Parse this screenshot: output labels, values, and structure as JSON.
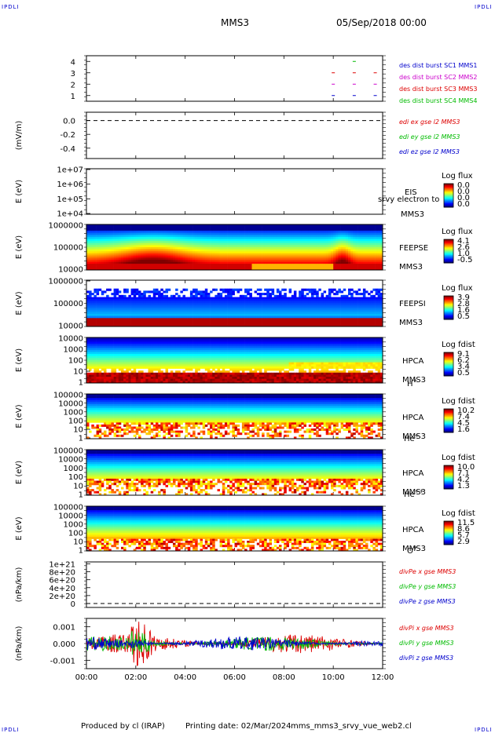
{
  "header": {
    "spacecraft": "MMS3",
    "date": "05/Sep/2018 00:00",
    "corner_mark": "IPDLI"
  },
  "footer": {
    "produced_by": "Produced by cl (IRAP)",
    "printing_date": "Printing date: 02/Mar/2024",
    "filename": "mms_mms3_srvy_vue_web2.cl"
  },
  "time_axis": {
    "ticks": [
      "00:00",
      "02:00",
      "04:00",
      "06:00",
      "08:00",
      "10:00",
      "12:00"
    ],
    "range_hours": [
      0,
      12
    ]
  },
  "colors": {
    "series_red": "#dd0000",
    "series_green": "#00bb00",
    "series_blue": "#0000cc",
    "series_magenta": "#cc00cc",
    "dashed": "#000000"
  },
  "chart_data": [
    {
      "type": "line",
      "panel": "burst",
      "ylim": [
        0.5,
        4.5
      ],
      "yticks": [
        "4",
        "3",
        "2",
        "1"
      ],
      "legend": [
        {
          "label": "des dist burst SC1 MMS1",
          "color": "#0000cc"
        },
        {
          "label": "des dist burst SC2 MMS2",
          "color": "#cc00cc"
        },
        {
          "label": "des dist burst SC3 MMS3",
          "color": "#dd0000"
        },
        {
          "label": "des dist burst SC4 MMS4",
          "color": "#00bb00"
        }
      ],
      "marks": [
        {
          "sc": 4,
          "t": 10.85,
          "color": "#00bb00"
        },
        {
          "sc": 3,
          "t": 10.0,
          "color": "#dd0000"
        },
        {
          "sc": 3,
          "t": 10.85,
          "color": "#dd0000"
        },
        {
          "sc": 3,
          "t": 11.7,
          "color": "#dd0000"
        },
        {
          "sc": 2,
          "t": 10.0,
          "color": "#cc00cc"
        },
        {
          "sc": 2,
          "t": 10.85,
          "color": "#cc00cc"
        },
        {
          "sc": 2,
          "t": 11.7,
          "color": "#cc00cc"
        },
        {
          "sc": 1,
          "t": 10.0,
          "color": "#0000cc"
        },
        {
          "sc": 1,
          "t": 10.85,
          "color": "#0000cc"
        },
        {
          "sc": 1,
          "t": 11.7,
          "color": "#0000cc"
        }
      ]
    },
    {
      "type": "line",
      "panel": "edi",
      "ylabel": "(mV/m)",
      "ylim": [
        -0.55,
        0.12
      ],
      "yticks": [
        {
          "label": "0.0",
          "v": 0
        },
        {
          "label": "-0.2",
          "v": -0.2
        },
        {
          "label": "-0.4",
          "v": -0.4
        }
      ],
      "dashed_zero": true,
      "legend": [
        {
          "label": "edi ex gse l2 MMS3",
          "color": "#dd0000"
        },
        {
          "label": "edi ey gse l2 MMS3",
          "color": "#00bb00"
        },
        {
          "label": "edi ez gse l2 MMS3",
          "color": "#0000cc"
        }
      ]
    },
    {
      "type": "heatmap",
      "panel": "EIS",
      "ylabel": "E (eV)",
      "yticks": [
        "1e+07",
        "1e+06",
        "1e+05",
        "1e+04"
      ],
      "instrument": "EIS",
      "spacecraft": "MMS3",
      "overlay_text": "srvy electron to",
      "colorbar_title": "Log flux",
      "colorbar_ticks": [
        "0.0",
        "0.0",
        "0.0",
        "0.0"
      ],
      "empty": true
    },
    {
      "type": "heatmap",
      "panel": "FEEPSE",
      "ylabel": "E (eV)",
      "yticks": [
        "1000000",
        "100000",
        "10000"
      ],
      "instrument": "FEEPSE",
      "spacecraft": "MMS3",
      "colorbar_title": "Log flux",
      "colorbar_ticks": [
        "4.1",
        "2.6",
        "1.0",
        "-0.5"
      ]
    },
    {
      "type": "heatmap",
      "panel": "FEEPSI",
      "ylabel": "E (eV)",
      "yticks": [
        "1000000",
        "100000",
        "10000"
      ],
      "instrument": "FEEPSI",
      "spacecraft": "MMS3",
      "colorbar_title": "Log flux",
      "colorbar_ticks": [
        "3.9",
        "2.8",
        "1.6",
        "0.5"
      ]
    },
    {
      "type": "heatmap",
      "panel": "HPCA H+",
      "ylabel": "E (eV)",
      "yticks": [
        "10000",
        "1000",
        "100",
        "10",
        "1"
      ],
      "instrument": "HPCA",
      "spacecraft": "MMS3",
      "species": "H",
      "species_sup": "+",
      "colorbar_title": "Log fdist",
      "colorbar_ticks": [
        "9.1",
        "6.2",
        "3.4",
        "0.5"
      ]
    },
    {
      "type": "heatmap",
      "panel": "HPCA He+",
      "ylabel": "E (eV)",
      "yticks": [
        "100000",
        "10000",
        "1000",
        "100",
        "10",
        "1"
      ],
      "instrument": "HPCA",
      "spacecraft": "MMS3",
      "species": "He",
      "species_sup": "+",
      "colorbar_title": "Log fdist",
      "colorbar_ticks": [
        "10.2",
        "7.4",
        "4.5",
        "1.6"
      ]
    },
    {
      "type": "heatmap",
      "panel": "HPCA He++",
      "ylabel": "E (eV)",
      "yticks": [
        "100000",
        "10000",
        "1000",
        "100",
        "10",
        "1"
      ],
      "instrument": "HPCA",
      "spacecraft": "MMS3",
      "species": "He",
      "species_sup": "++",
      "colorbar_title": "Log fdist",
      "colorbar_ticks": [
        "10.0",
        "7.1",
        "4.2",
        "1.3"
      ]
    },
    {
      "type": "heatmap",
      "panel": "HPCA O+",
      "ylabel": "E (eV)",
      "yticks": [
        "100000",
        "10000",
        "1000",
        "100",
        "10",
        "1"
      ],
      "instrument": "HPCA",
      "spacecraft": "MMS3",
      "species": "O",
      "species_sup": "+",
      "colorbar_title": "Log fdist",
      "colorbar_ticks": [
        "11.5",
        "8.6",
        "5.7",
        "2.9"
      ]
    },
    {
      "type": "line",
      "panel": "divPe",
      "ylabel": "(nPa/km)",
      "ylim": [
        -0.1,
        1.05
      ],
      "yticks": [
        {
          "label": "1e+21",
          "v": 1.0
        },
        {
          "label": "8e+20",
          "v": 0.8
        },
        {
          "label": "6e+20",
          "v": 0.6
        },
        {
          "label": "4e+20",
          "v": 0.4
        },
        {
          "label": "2e+20",
          "v": 0.2
        },
        {
          "label": "0",
          "v": 0
        }
      ],
      "dashed_zero": true,
      "legend": [
        {
          "label": "divPe x gse MMS3",
          "color": "#dd0000"
        },
        {
          "label": "divPe y gse MMS3",
          "color": "#00bb00"
        },
        {
          "label": "divPe z gse MMS3",
          "color": "#0000cc"
        }
      ]
    },
    {
      "type": "line",
      "panel": "divPi",
      "ylabel": "(nPa/km)",
      "ylim": [
        -0.0015,
        0.0015
      ],
      "yticks": [
        {
          "label": "0.001",
          "v": 0.001
        },
        {
          "label": "0.000",
          "v": 0
        },
        {
          "label": "-0.001",
          "v": -0.001
        }
      ],
      "legend": [
        {
          "label": "divPi x gse MMS3",
          "color": "#dd0000"
        },
        {
          "label": "divPi y gse MMS3",
          "color": "#00bb00"
        },
        {
          "label": "divPi z gse MMS3",
          "color": "#0000cc"
        }
      ]
    }
  ]
}
